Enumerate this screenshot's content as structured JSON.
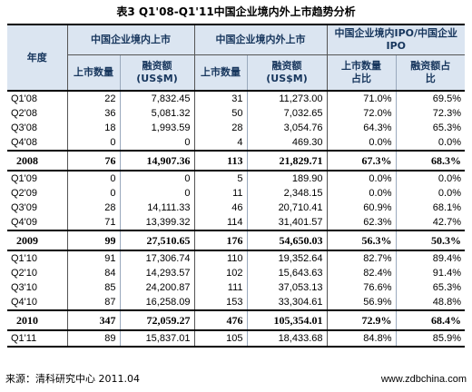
{
  "title": "表3 Q1'08-Q1'11中国企业境内外上市趋势分析",
  "header": {
    "year": "年度",
    "group_domestic": "中国企业境内上市",
    "group_all": "中国企业境内外上市",
    "group_share": "中国企业境内IPO/中国企业IPO",
    "col_count": "上市数量",
    "col_amount": "融资额\n(US$M)",
    "col_share_count": "上市数量\n占比",
    "col_share_amount": "融资额占\n比"
  },
  "rows": [
    {
      "type": "q",
      "period": "Q1'08",
      "d_count": "22",
      "d_amount": "7,832.45",
      "a_count": "31",
      "a_amount": "11,273.00",
      "s_count": "71.0%",
      "s_amount": "69.5%"
    },
    {
      "type": "q",
      "period": "Q2'08",
      "d_count": "36",
      "d_amount": "5,081.32",
      "a_count": "50",
      "a_amount": "7,032.65",
      "s_count": "72.0%",
      "s_amount": "72.3%"
    },
    {
      "type": "q",
      "period": "Q3'08",
      "d_count": "18",
      "d_amount": "1,993.59",
      "a_count": "28",
      "a_amount": "3,054.76",
      "s_count": "64.3%",
      "s_amount": "65.3%"
    },
    {
      "type": "q",
      "period": "Q4'08",
      "d_count": "0",
      "d_amount": "0",
      "a_count": "4",
      "a_amount": "469.30",
      "s_count": "0.0%",
      "s_amount": "0.0%"
    },
    {
      "type": "total",
      "period": "2008",
      "d_count": "76",
      "d_amount": "14,907.36",
      "a_count": "113",
      "a_amount": "21,829.71",
      "s_count": "67.3%",
      "s_amount": "68.3%"
    },
    {
      "type": "q",
      "period": "Q1'09",
      "d_count": "0",
      "d_amount": "0",
      "a_count": "5",
      "a_amount": "189.90",
      "s_count": "0.0%",
      "s_amount": "0.0%"
    },
    {
      "type": "q",
      "period": "Q2'09",
      "d_count": "0",
      "d_amount": "0",
      "a_count": "11",
      "a_amount": "2,348.15",
      "s_count": "0.0%",
      "s_amount": "0.0%"
    },
    {
      "type": "q",
      "period": "Q3'09",
      "d_count": "28",
      "d_amount": "14,111.33",
      "a_count": "46",
      "a_amount": "20,710.41",
      "s_count": "60.9%",
      "s_amount": "68.1%"
    },
    {
      "type": "q",
      "period": "Q4'09",
      "d_count": "71",
      "d_amount": "13,399.32",
      "a_count": "114",
      "a_amount": "31,401.57",
      "s_count": "62.3%",
      "s_amount": "42.7%"
    },
    {
      "type": "total",
      "period": "2009",
      "d_count": "99",
      "d_amount": "27,510.65",
      "a_count": "176",
      "a_amount": "54,650.03",
      "s_count": "56.3%",
      "s_amount": "50.3%"
    },
    {
      "type": "q",
      "period": "Q1'10",
      "d_count": "91",
      "d_amount": "17,306.74",
      "a_count": "110",
      "a_amount": "19,352.64",
      "s_count": "82.7%",
      "s_amount": "89.4%"
    },
    {
      "type": "q",
      "period": "Q2'10",
      "d_count": "84",
      "d_amount": "14,293.57",
      "a_count": "102",
      "a_amount": "15,643.63",
      "s_count": "82.4%",
      "s_amount": "91.4%"
    },
    {
      "type": "q",
      "period": "Q3'10",
      "d_count": "85",
      "d_amount": "24,200.87",
      "a_count": "111",
      "a_amount": "37,053.13",
      "s_count": "76.6%",
      "s_amount": "65.3%"
    },
    {
      "type": "q",
      "period": "Q4'10",
      "d_count": "87",
      "d_amount": "16,258.09",
      "a_count": "153",
      "a_amount": "33,304.61",
      "s_count": "56.9%",
      "s_amount": "48.8%"
    },
    {
      "type": "total",
      "period": "2010",
      "d_count": "347",
      "d_amount": "72,059.27",
      "a_count": "476",
      "a_amount": "105,354.01",
      "s_count": "72.9%",
      "s_amount": "68.4%"
    },
    {
      "type": "q",
      "period": "Q1'11",
      "d_count": "89",
      "d_amount": "15,837.01",
      "a_count": "105",
      "a_amount": "18,433.68",
      "s_count": "84.8%",
      "s_amount": "85.9%"
    }
  ],
  "footer": {
    "source": "来源：清科研究中心  2011.04",
    "website": "www.zdbchina.com"
  }
}
